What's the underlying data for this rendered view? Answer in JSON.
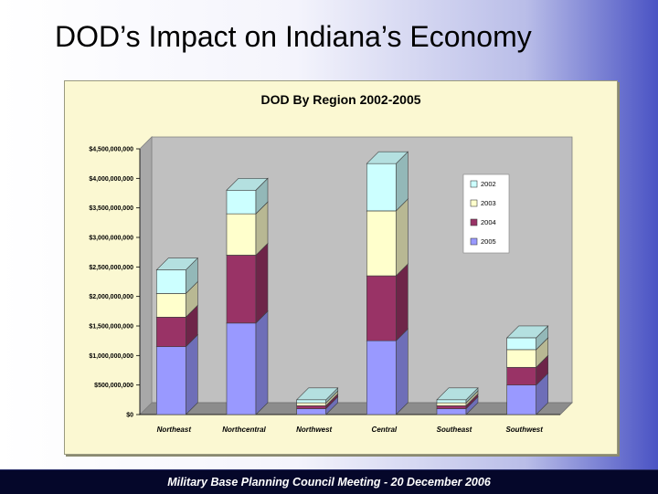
{
  "slide": {
    "title": "DOD’s Impact on Indiana’s Economy",
    "footer": "Military Base Planning Council  Meeting  - 20 December 2006"
  },
  "chart_data": {
    "type": "bar",
    "stacked": true,
    "three_d": true,
    "title": "DOD By Region 2002-2005",
    "categories": [
      "Northeast",
      "Northcentral",
      "Northwest",
      "Central",
      "Southeast",
      "Southwest"
    ],
    "series": [
      {
        "name": "2005",
        "color": "#9999ff",
        "values": [
          1150000000,
          1550000000,
          100000000,
          1250000000,
          100000000,
          500000000
        ]
      },
      {
        "name": "2004",
        "color": "#993366",
        "values": [
          500000000,
          1150000000,
          50000000,
          1100000000,
          50000000,
          300000000
        ]
      },
      {
        "name": "2003",
        "color": "#ffffcc",
        "values": [
          400000000,
          700000000,
          50000000,
          1100000000,
          50000000,
          300000000
        ]
      },
      {
        "name": "2002",
        "color": "#ccffff",
        "values": [
          400000000,
          400000000,
          50000000,
          800000000,
          50000000,
          200000000
        ]
      }
    ],
    "legend_order": [
      "2002",
      "2003",
      "2004",
      "2005"
    ],
    "yticks": [
      "$0",
      "$500,000,000",
      "$1,000,000,000",
      "$1,500,000,000",
      "$2,000,000,000",
      "$2,500,000,000",
      "$3,000,000,000",
      "$3,500,000,000",
      "$4,000,000,000",
      "$4,500,000,000"
    ],
    "ylim": [
      0,
      4500000000
    ],
    "legend_position": "right",
    "grid": false
  }
}
